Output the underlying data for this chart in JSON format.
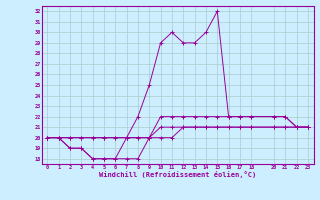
{
  "xlabel": "Windchill (Refroidissement éolien,°C)",
  "bg_color": "#cceeff",
  "line_color": "#990099",
  "grid_color": "#aacccc",
  "xlim": [
    -0.5,
    23.5
  ],
  "ylim": [
    17.5,
    32.5
  ],
  "yticks": [
    18,
    19,
    20,
    21,
    22,
    23,
    24,
    25,
    26,
    27,
    28,
    29,
    30,
    31,
    32
  ],
  "xticks": [
    0,
    1,
    2,
    3,
    4,
    5,
    6,
    7,
    8,
    9,
    10,
    11,
    12,
    13,
    14,
    15,
    16,
    17,
    18,
    20,
    21,
    22,
    23
  ],
  "line1_x": [
    0,
    1,
    2,
    3,
    4,
    5,
    6,
    7,
    8,
    9,
    10,
    11,
    12,
    13,
    14,
    15,
    16,
    17,
    18,
    20,
    21,
    22,
    23
  ],
  "line1_y": [
    20,
    20,
    19,
    19,
    18,
    18,
    18,
    18,
    18,
    20,
    22,
    22,
    22,
    22,
    22,
    22,
    22,
    22,
    22,
    22,
    22,
    21,
    21
  ],
  "line2_x": [
    0,
    1,
    2,
    3,
    4,
    5,
    6,
    7,
    8,
    9,
    10,
    11,
    12,
    13,
    14,
    15,
    16,
    17,
    18,
    20,
    21,
    22,
    23
  ],
  "line2_y": [
    20,
    20,
    19,
    19,
    18,
    18,
    18,
    20,
    22,
    25,
    29,
    30,
    29,
    29,
    30,
    32,
    22,
    22,
    22,
    22,
    22,
    21,
    21
  ],
  "line3_x": [
    0,
    1,
    2,
    3,
    4,
    5,
    6,
    7,
    8,
    9,
    10,
    11,
    12,
    13,
    14,
    15,
    16,
    17,
    18,
    20,
    21,
    22,
    23
  ],
  "line3_y": [
    20,
    20,
    20,
    20,
    20,
    20,
    20,
    20,
    20,
    20,
    21,
    21,
    21,
    21,
    21,
    21,
    21,
    21,
    21,
    21,
    21,
    21,
    21
  ],
  "line4_x": [
    0,
    1,
    2,
    3,
    4,
    5,
    6,
    7,
    8,
    9,
    10,
    11,
    12,
    13,
    14,
    15,
    16,
    17,
    18,
    20,
    21,
    22,
    23
  ],
  "line4_y": [
    20,
    20,
    20,
    20,
    20,
    20,
    20,
    20,
    20,
    20,
    20,
    20,
    21,
    21,
    21,
    21,
    21,
    21,
    21,
    21,
    21,
    21,
    21
  ]
}
